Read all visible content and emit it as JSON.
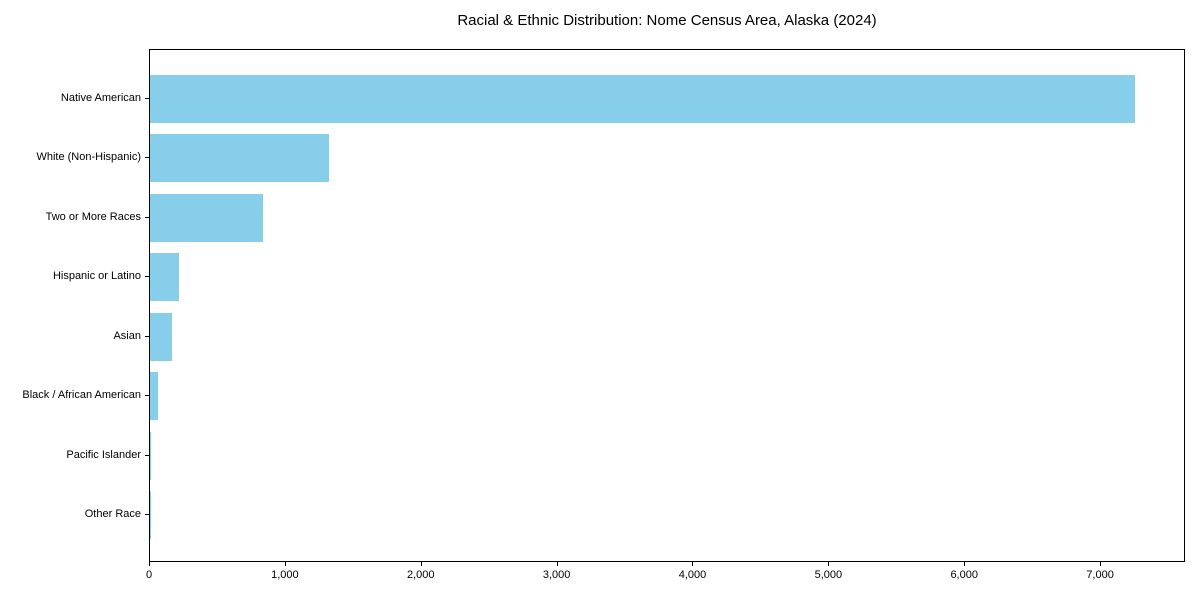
{
  "chart_data": {
    "type": "bar",
    "orientation": "horizontal",
    "title": "Racial & Ethnic Distribution: Nome Census Area, Alaska (2024)",
    "categories": [
      "Native American",
      "White (Non-Hispanic)",
      "Two or More Races",
      "Hispanic or Latino",
      "Asian",
      "Black / African American",
      "Pacific Islander",
      "Other Race"
    ],
    "values": [
      7250,
      1320,
      830,
      215,
      165,
      58,
      10,
      5
    ],
    "xlabel": "",
    "ylabel": "",
    "xlim": [
      0,
      7625
    ],
    "x_ticks": [
      0,
      1000,
      2000,
      3000,
      4000,
      5000,
      6000,
      7000
    ],
    "x_tick_labels": [
      "0",
      "1,000",
      "2,000",
      "3,000",
      "4,000",
      "5,000",
      "6,000",
      "7,000"
    ],
    "bar_color": "#87CEEB",
    "axis_color": "#000000",
    "background_color": "#ffffff",
    "grid": false,
    "legend": false
  }
}
